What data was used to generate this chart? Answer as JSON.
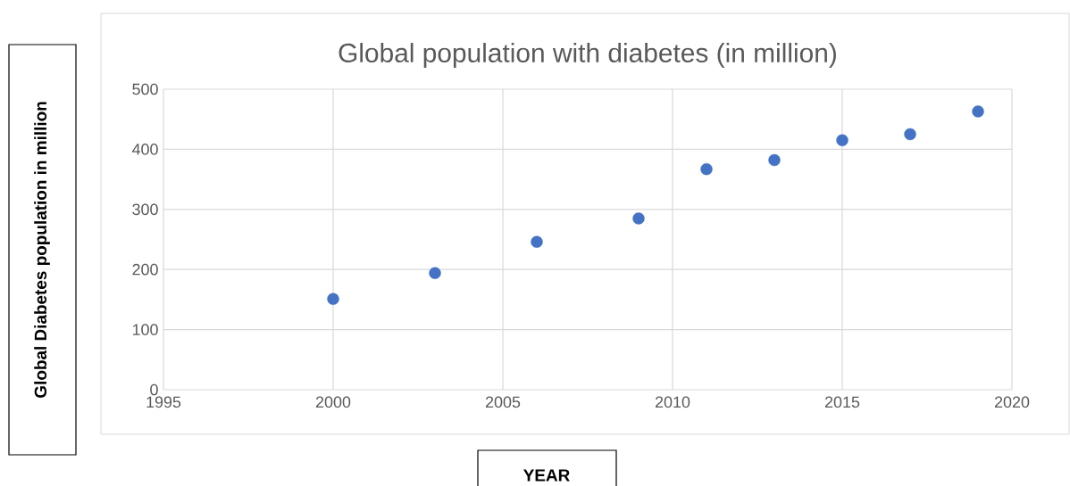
{
  "chart_data": {
    "type": "scatter",
    "title": "Global population with diabetes (in million)",
    "xlabel": "YEAR",
    "ylabel": "Global Diabetes population in million",
    "x": [
      2000,
      2003,
      2006,
      2009,
      2011,
      2013,
      2015,
      2017,
      2019
    ],
    "series": [
      {
        "color": "#4472c4",
        "values": [
          151,
          194,
          246,
          285,
          367,
          382,
          415,
          425,
          463
        ]
      }
    ],
    "xlim": [
      1995,
      2020
    ],
    "xticks": [
      1995,
      2000,
      2005,
      2010,
      2015,
      2020
    ],
    "ylim": [
      0,
      500
    ],
    "yticks": [
      0,
      100,
      200,
      300,
      400,
      500
    ],
    "grid": true,
    "marker": "circle"
  }
}
